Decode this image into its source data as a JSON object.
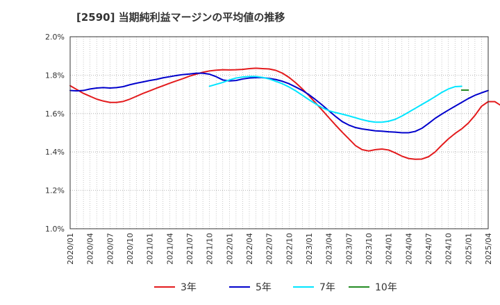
{
  "chart_data": {
    "type": "line",
    "title": "[2590]  当期純利益マージンの平均値の推移",
    "xlabel": "",
    "ylabel": "",
    "ylim": [
      1.0,
      2.0
    ],
    "y_ticks": [
      "1.0%",
      "1.2%",
      "1.4%",
      "1.6%",
      "1.8%",
      "2.0%"
    ],
    "x_ticks": [
      "2020/01",
      "2020/04",
      "2020/07",
      "2020/10",
      "2021/01",
      "2021/04",
      "2021/07",
      "2021/10",
      "2022/01",
      "2022/04",
      "2022/07",
      "2022/10",
      "2023/01",
      "2023/04",
      "2023/07",
      "2023/10",
      "2024/01",
      "2024/04",
      "2024/07",
      "2024/10",
      "2025/01",
      "2025/04"
    ],
    "x_start": "2020/01",
    "grid": true,
    "legend_position": "bottom",
    "series": [
      {
        "name": "3年",
        "color": "#e31a1c",
        "start_month": "2020/01",
        "values": [
          1.745,
          1.725,
          1.705,
          1.69,
          1.675,
          1.665,
          1.658,
          1.658,
          1.663,
          1.675,
          1.69,
          1.705,
          1.718,
          1.732,
          1.745,
          1.758,
          1.77,
          1.782,
          1.795,
          1.805,
          1.815,
          1.822,
          1.826,
          1.828,
          1.827,
          1.828,
          1.83,
          1.834,
          1.836,
          1.834,
          1.832,
          1.825,
          1.81,
          1.788,
          1.76,
          1.728,
          1.693,
          1.655,
          1.617,
          1.578,
          1.54,
          1.503,
          1.468,
          1.433,
          1.412,
          1.405,
          1.412,
          1.415,
          1.41,
          1.395,
          1.378,
          1.366,
          1.362,
          1.363,
          1.375,
          1.4,
          1.435,
          1.468,
          1.496,
          1.52,
          1.55,
          1.59,
          1.638,
          1.662,
          1.662,
          1.64
        ]
      },
      {
        "name": "5年",
        "color": "#0000cc",
        "start_month": "2020/01",
        "values": [
          1.72,
          1.718,
          1.72,
          1.728,
          1.733,
          1.735,
          1.733,
          1.735,
          1.74,
          1.75,
          1.758,
          1.765,
          1.772,
          1.778,
          1.786,
          1.792,
          1.798,
          1.803,
          1.806,
          1.81,
          1.81,
          1.805,
          1.792,
          1.775,
          1.77,
          1.772,
          1.78,
          1.785,
          1.787,
          1.787,
          1.783,
          1.777,
          1.768,
          1.755,
          1.738,
          1.72,
          1.698,
          1.672,
          1.644,
          1.614,
          1.585,
          1.558,
          1.54,
          1.527,
          1.52,
          1.515,
          1.51,
          1.508,
          1.505,
          1.503,
          1.5,
          1.5,
          1.507,
          1.523,
          1.548,
          1.575,
          1.597,
          1.618,
          1.638,
          1.658,
          1.678,
          1.695,
          1.708,
          1.72
        ]
      },
      {
        "name": "7年",
        "color": "#00e5ff",
        "start_month": "2021/10",
        "values": [
          1.742,
          1.752,
          1.762,
          1.775,
          1.785,
          1.79,
          1.793,
          1.793,
          1.788,
          1.78,
          1.768,
          1.755,
          1.738,
          1.718,
          1.695,
          1.672,
          1.65,
          1.63,
          1.615,
          1.605,
          1.597,
          1.588,
          1.578,
          1.568,
          1.56,
          1.555,
          1.555,
          1.56,
          1.57,
          1.587,
          1.607,
          1.627,
          1.647,
          1.667,
          1.688,
          1.71,
          1.728,
          1.74,
          1.742
        ]
      },
      {
        "name": "10年",
        "color": "#228b22",
        "start_month": "2024/12",
        "values": [
          1.722,
          1.722
        ]
      }
    ]
  }
}
